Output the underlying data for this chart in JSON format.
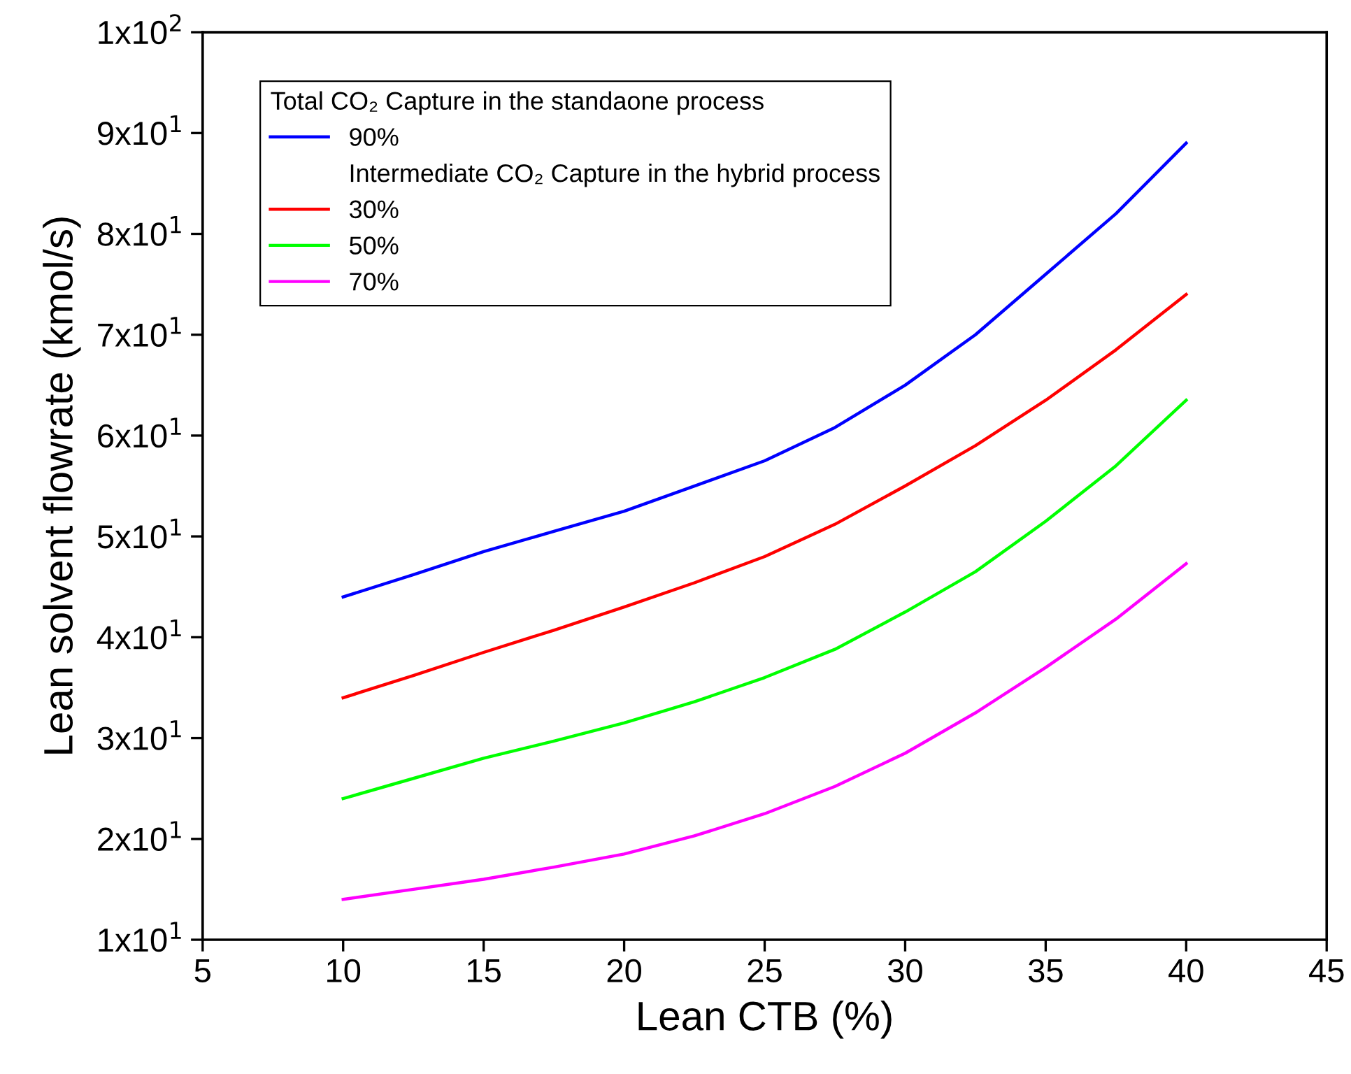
{
  "chart_data": {
    "type": "line",
    "xlabel": "Lean CTB (%)",
    "ylabel": "Lean solvent flowrate (kmol/s)",
    "legend_title": "Total CO₂ Capture in the standaone process",
    "annotations": [
      "Intermediate CO₂ Capture in the hybrid process"
    ],
    "x": [
      10,
      12.5,
      15,
      17.5,
      20,
      22.5,
      25,
      27.5,
      30,
      32.5,
      35,
      37.5,
      40
    ],
    "series": [
      {
        "name": "90%",
        "color": "#0000ff",
        "values": [
          44,
          46.2,
          48.5,
          50.5,
          52.5,
          55,
          57.5,
          60.8,
          65,
          70,
          76,
          82,
          89
        ]
      },
      {
        "name": "30%",
        "color": "#ff0000",
        "values": [
          34,
          36.2,
          38.5,
          40.7,
          43,
          45.4,
          48,
          51.2,
          55,
          59,
          63.5,
          68.5,
          74
        ]
      },
      {
        "name": "50%",
        "color": "#00ff00",
        "values": [
          24,
          26,
          28,
          29.7,
          31.5,
          33.6,
          36,
          38.8,
          42.5,
          46.5,
          51.5,
          57,
          63.5
        ]
      },
      {
        "name": "70%",
        "color": "#ff00ff",
        "values": [
          14,
          15,
          16,
          17.2,
          18.5,
          20.3,
          22.5,
          25.2,
          28.5,
          32.5,
          37,
          41.8,
          47.3
        ]
      }
    ],
    "xlim": [
      5,
      45
    ],
    "xticks": [
      5,
      10,
      15,
      20,
      25,
      30,
      35,
      40,
      45
    ],
    "ylim": [
      10,
      100
    ],
    "yticks": [
      {
        "value": 10,
        "label": "1x10$^{1}$"
      },
      {
        "value": 20,
        "label": "2x10$^{1}$"
      },
      {
        "value": 30,
        "label": "3x10$^{1}$"
      },
      {
        "value": 40,
        "label": "4x10$^{1}$"
      },
      {
        "value": 50,
        "label": "5x10$^{1}$"
      },
      {
        "value": 60,
        "label": "6x10$^{1}$"
      },
      {
        "value": 70,
        "label": "7x10$^{1}$"
      },
      {
        "value": 80,
        "label": "8x10$^{1}$"
      },
      {
        "value": 90,
        "label": "9x10$^{1}$"
      },
      {
        "value": 100,
        "label": "1x10$^{2}$"
      }
    ],
    "legend": "top left",
    "grid": false,
    "marker": "none",
    "line_style": "solid"
  }
}
